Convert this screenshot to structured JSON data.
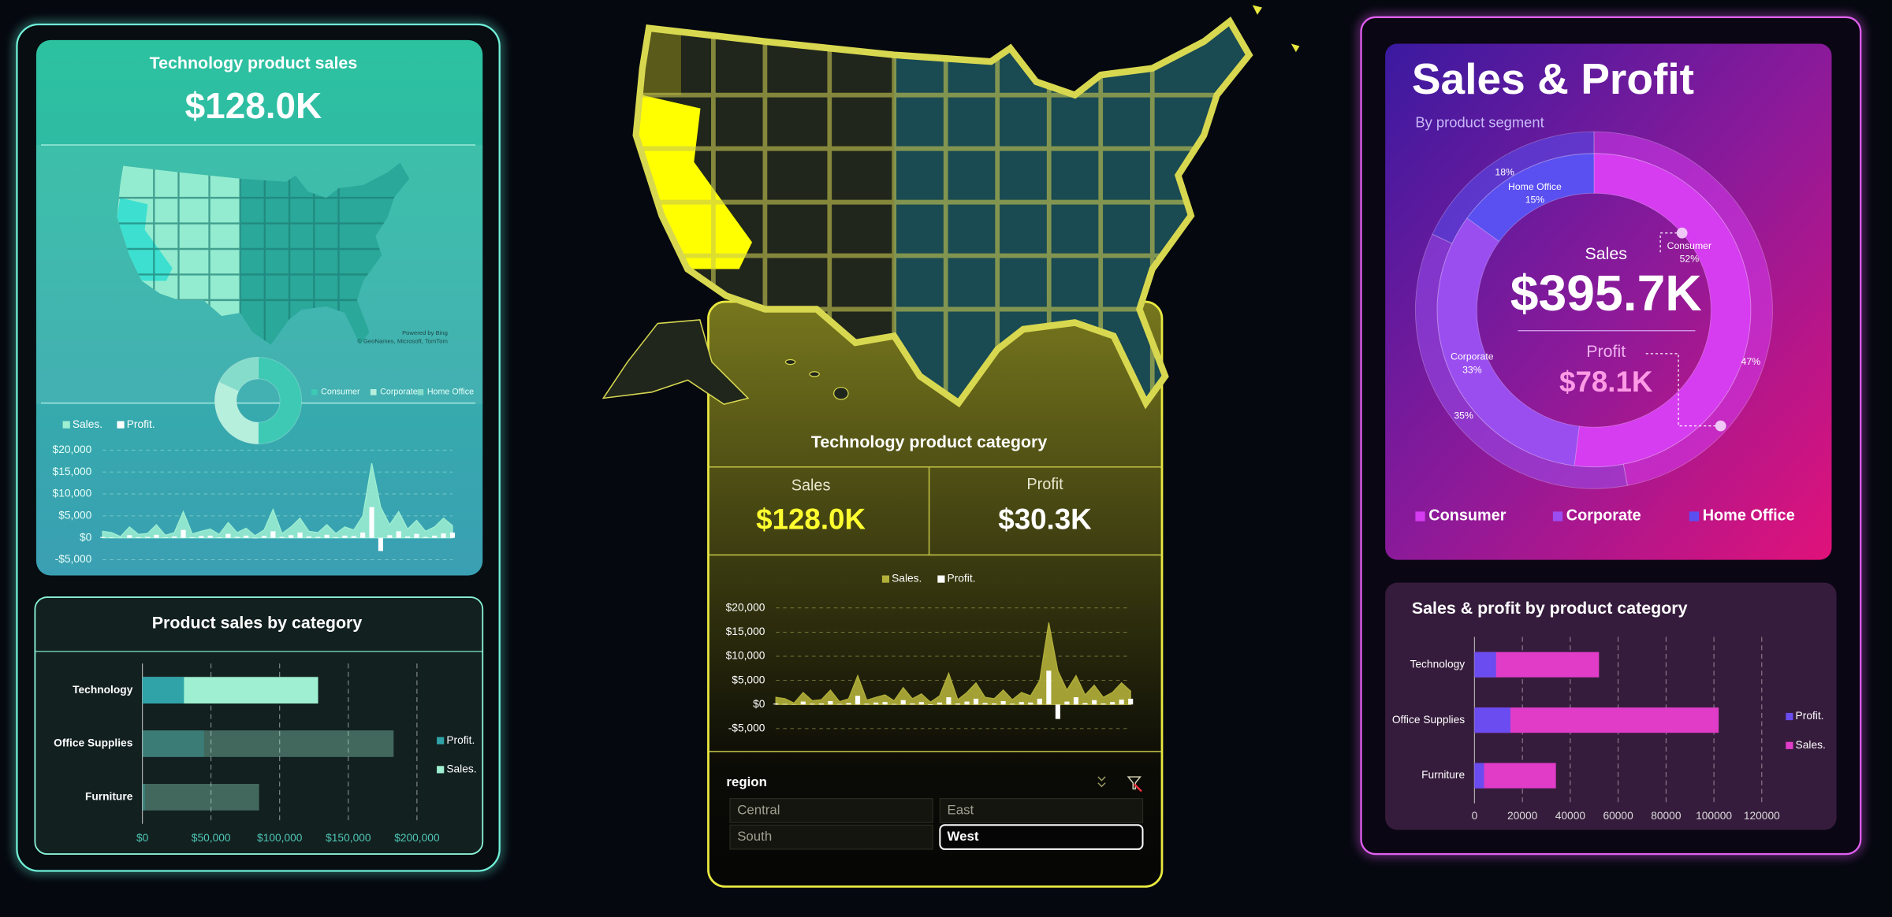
{
  "left_panel": {
    "title": "Technology product sales",
    "kpi": "$128.0K",
    "map_credit": [
      "Powered by Bing",
      "© GeoNames, Microsoft, TomTom"
    ],
    "bar_title": "Product sales by category"
  },
  "middle_panel": {
    "title": "Technology product category",
    "sales_label": "Sales",
    "sales_value": "$128.0K",
    "profit_label": "Profit",
    "profit_value": "$30.3K"
  },
  "slicer": {
    "title": "region",
    "items": [
      "Central",
      "East",
      "South",
      "West"
    ],
    "selected": "West"
  },
  "right_panel": {
    "title": "Sales & Profit",
    "subtitle": "By product segment",
    "sales_label": "Sales",
    "sales_value": "$395.7K",
    "profit_label": "Profit",
    "profit_value": "$78.1K",
    "bar_title": "Sales & profit by product category"
  },
  "chart_data": [
    {
      "type": "donut",
      "categories": [
        "Consumer",
        "Corporate",
        "Home Office"
      ],
      "colors": [
        "#3ec9b4",
        "#b6efdc",
        "#86dccb"
      ],
      "series": [
        {
          "values": [
            50,
            32,
            18
          ]
        }
      ]
    },
    {
      "type": "combo",
      "ylim": [
        -5000,
        20000
      ],
      "yticks": [
        {
          "value": 20000,
          "label": "$20,000"
        },
        {
          "value": 15000,
          "label": "$15,000"
        },
        {
          "value": 10000,
          "label": "$10,000"
        },
        {
          "value": 5000,
          "label": "$5,000"
        },
        {
          "value": 0,
          "label": "$0"
        },
        {
          "value": -5000,
          "label": "-$5,000"
        }
      ],
      "grid": true,
      "series": [
        {
          "name": "Sales.",
          "color": "#9ff0d2",
          "values": [
            1500,
            1200,
            300,
            2500,
            800,
            1000,
            3000,
            600,
            1200,
            6000,
            900,
            1500,
            2000,
            800,
            3500,
            1200,
            2200,
            500,
            1800,
            6500,
            1000,
            2500,
            4500,
            1500,
            1200,
            3000,
            1000,
            2500,
            1800,
            5000,
            17000,
            7000,
            3000,
            6000,
            2000,
            4000,
            1500,
            2500,
            4500,
            2800
          ]
        },
        {
          "name": "Profit.",
          "color": "#ffffff",
          "values": [
            200,
            100,
            -50,
            600,
            150,
            200,
            700,
            100,
            300,
            1800,
            150,
            400,
            500,
            100,
            900,
            200,
            500,
            -100,
            400,
            1500,
            200,
            600,
            1200,
            300,
            200,
            700,
            150,
            500,
            400,
            1200,
            7000,
            -3000,
            600,
            1500,
            300,
            900,
            200,
            500,
            1000,
            1200
          ]
        }
      ]
    },
    {
      "type": "bar",
      "horizontal": true,
      "categories": [
        "Technology",
        "Office Supplies",
        "Furniture"
      ],
      "highlight": "Technology",
      "xlim": [
        0,
        225000
      ],
      "xticks": [
        {
          "value": 0,
          "label": "$0"
        },
        {
          "value": 50000,
          "label": "$50,000"
        },
        {
          "value": 100000,
          "label": "$100,000"
        },
        {
          "value": 150000,
          "label": "$150,000"
        },
        {
          "value": 200000,
          "label": "$200,000"
        }
      ],
      "grid": true,
      "series": [
        {
          "name": "Sales.",
          "color": "#9ff0d2",
          "values": [
            128000,
            183000,
            85000
          ]
        },
        {
          "name": "Profit.",
          "color": "#2fa3a8",
          "values": [
            30300,
            45000,
            2000
          ]
        }
      ]
    },
    {
      "type": "combo",
      "ylim": [
        -5000,
        20000
      ],
      "yticks": [
        {
          "value": 20000,
          "label": "$20,000"
        },
        {
          "value": 15000,
          "label": "$15,000"
        },
        {
          "value": 10000,
          "label": "$10,000"
        },
        {
          "value": 5000,
          "label": "$5,000"
        },
        {
          "value": 0,
          "label": "$0"
        },
        {
          "value": -5000,
          "label": "-$5,000"
        }
      ],
      "grid": true,
      "series": [
        {
          "name": "Sales.",
          "color": "#b3b03a",
          "values": [
            1500,
            1200,
            300,
            2500,
            800,
            1000,
            3000,
            600,
            1200,
            6000,
            900,
            1500,
            2000,
            800,
            3500,
            1200,
            2200,
            500,
            1800,
            6500,
            1000,
            2500,
            4500,
            1500,
            1200,
            3000,
            1000,
            2500,
            1800,
            5000,
            17000,
            7000,
            3000,
            6000,
            2000,
            4000,
            1500,
            2500,
            4500,
            2800
          ]
        },
        {
          "name": "Profit.",
          "color": "#ffffff",
          "values": [
            200,
            100,
            -50,
            600,
            150,
            200,
            700,
            100,
            300,
            1800,
            150,
            400,
            500,
            100,
            900,
            200,
            500,
            -100,
            400,
            1500,
            200,
            600,
            1200,
            300,
            200,
            700,
            150,
            500,
            400,
            1200,
            7000,
            -3000,
            600,
            1500,
            300,
            900,
            200,
            500,
            1000,
            1200
          ]
        }
      ]
    },
    {
      "type": "donut",
      "categories": [
        "Consumer",
        "Corporate",
        "Home Office"
      ],
      "colors": [
        "#d63cf0",
        "#9b4ef0",
        "#5a4ff0"
      ],
      "series": [
        {
          "values": [
            52,
            33,
            15
          ],
          "value_labels": [
            "52%",
            "33%",
            "15%"
          ]
        },
        {
          "values": [
            47,
            35,
            18
          ],
          "value_labels": [
            "47%",
            "35%",
            "18%"
          ]
        }
      ]
    },
    {
      "type": "bar",
      "horizontal": true,
      "categories": [
        "Technology",
        "Office Supplies",
        "Furniture"
      ],
      "xlim": [
        0,
        125000
      ],
      "xticks": [
        0,
        20000,
        40000,
        60000,
        80000,
        100000,
        120000
      ],
      "grid": true,
      "series": [
        {
          "name": "Sales.",
          "color": "#e03cc8",
          "values": [
            52000,
            102000,
            34000
          ]
        },
        {
          "name": "Profit.",
          "color": "#6a4cf0",
          "values": [
            9000,
            15000,
            4000
          ]
        }
      ]
    }
  ]
}
